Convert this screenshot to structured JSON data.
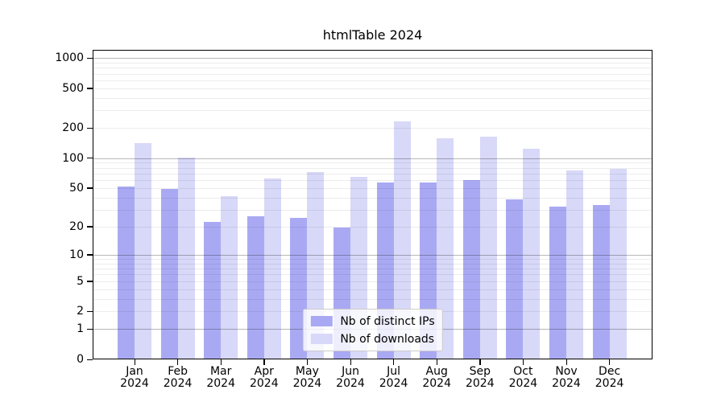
{
  "title": "htmlTable 2024",
  "chart_data": {
    "type": "bar",
    "title": "htmlTable 2024",
    "y_scale": "symlog: y ∝ log10(1 + value)",
    "categories": [
      "Jan",
      "Feb",
      "Mar",
      "Apr",
      "May",
      "Jun",
      "Jul",
      "Aug",
      "Sep",
      "Oct",
      "Nov",
      "Dec"
    ],
    "x_year_label": "2024",
    "y_tick_labels": [
      "0",
      "1",
      "2",
      "5",
      "10",
      "20",
      "50",
      "100",
      "200",
      "500",
      "1000"
    ],
    "y_tick_values": [
      0,
      1,
      2,
      5,
      10,
      20,
      50,
      100,
      200,
      500,
      1000
    ],
    "ylim": [
      0,
      1210
    ],
    "grid": true,
    "legend_position": "lower center",
    "series": [
      {
        "name": "Nb of distinct IPs",
        "color": "#a9a9f3",
        "values": [
          53,
          50,
          23,
          26,
          25,
          20,
          58,
          58,
          61,
          39,
          33,
          34
        ]
      },
      {
        "name": "Nb of downloads",
        "color": "#d8d8f8",
        "values": [
          144,
          104,
          42,
          63,
          74,
          66,
          240,
          161,
          167,
          126,
          76,
          80
        ]
      }
    ]
  },
  "colors": {
    "background": "#ffffff",
    "axis": "#000000",
    "major_grid": "#b8b8b8",
    "minor_grid": "#e9e9e9",
    "legend_border": "#cccccc",
    "series_dark": "#a9a9f3",
    "series_light": "#d8d8f8"
  }
}
